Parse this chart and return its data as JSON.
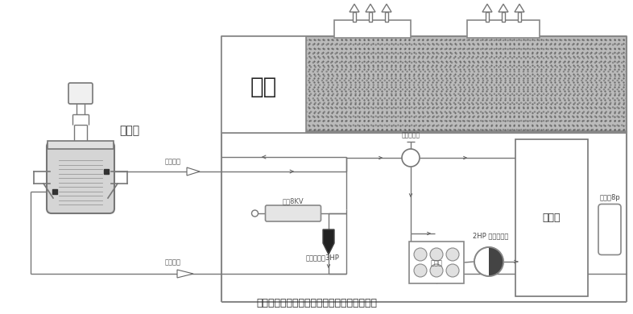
{
  "bg_color": "#ffffff",
  "line_color": "#666666",
  "title": "搪瓷攪拌罐風冷式冷熱一體機控溫方案示意圖",
  "label_stirrer": "攪拌罐",
  "label_ebox": "电箱",
  "label_oil_tank": "冷油箱",
  "label_media_in": "媒介進口",
  "label_media_out": "媒介出口",
  "label_outer_pump": "外循環油泵3HP",
  "label_inner_pump": "2HP 內循環油泵",
  "label_4way": "冷卻氣動閥",
  "label_heater": "加熱8KV",
  "label_pressure": "高壓縮8p",
  "label_evaporator": "蒸發器",
  "hatch_color": "#aaaaaa",
  "ebox_left_color": "#f5f5f5",
  "ebox_right_color": "#cccccc"
}
